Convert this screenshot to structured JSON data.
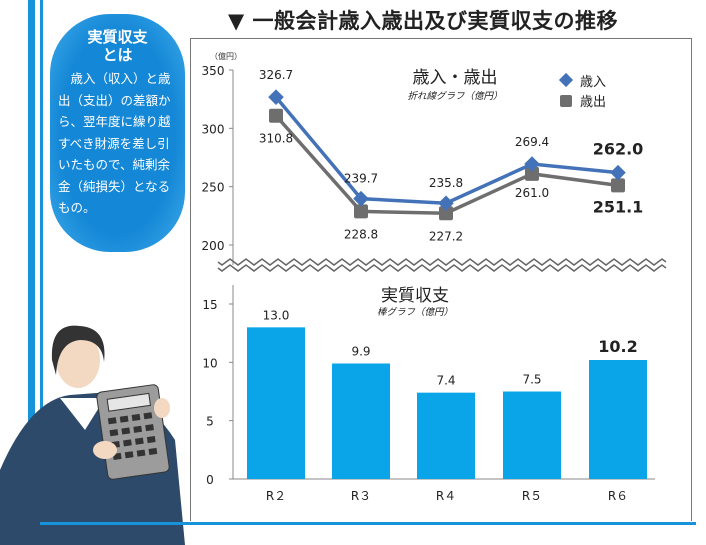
{
  "title": "▼ 一般会計歳入歳出及び実質収支の推移",
  "bubble": {
    "heading_line1": "実質収支",
    "heading_line2": "とは",
    "body": "歳入（収入）と歳出（支出）の差額から、翌年度に繰り越すべき財源を差し引いたもので、純剰余金（純損失）となるもの。"
  },
  "colors": {
    "revenue": "#4472b8",
    "expenditure": "#6e6e6e",
    "bar": "#0aa5e8",
    "accent": "#1793dc"
  },
  "chart_data": [
    {
      "type": "line",
      "title": "歳入・歳出",
      "subtitle": "折れ線グラフ（億円）",
      "unit_label": "（億円）",
      "categories": [
        "R２",
        "R３",
        "R４",
        "R５",
        "R６"
      ],
      "yticks": [
        "350",
        "300",
        "250",
        "200"
      ],
      "ylim": [
        200,
        350
      ],
      "legend_position": "top-right",
      "series": [
        {
          "name": "歳入",
          "marker": "diamond",
          "values": [
            326.7,
            239.7,
            235.8,
            269.4,
            262.0
          ],
          "labels": [
            "326.7",
            "239.7",
            "235.8",
            "269.4",
            "262.0"
          ]
        },
        {
          "name": "歳出",
          "marker": "square",
          "values": [
            310.8,
            228.8,
            227.2,
            261.0,
            251.1
          ],
          "labels": [
            "310.8",
            "228.8",
            "227.2",
            "261.0",
            "251.1"
          ]
        }
      ]
    },
    {
      "type": "bar",
      "title": "実質収支",
      "subtitle": "棒グラフ（億円）",
      "categories": [
        "R２",
        "R３",
        "R４",
        "R５",
        "R６"
      ],
      "yticks": [
        "15",
        "10",
        "5",
        "0"
      ],
      "ylim": [
        0,
        15
      ],
      "values": [
        13.0,
        9.9,
        7.4,
        7.5,
        10.2
      ],
      "labels": [
        "13.0",
        "9.9",
        "7.4",
        "7.5",
        "10.2"
      ]
    }
  ]
}
